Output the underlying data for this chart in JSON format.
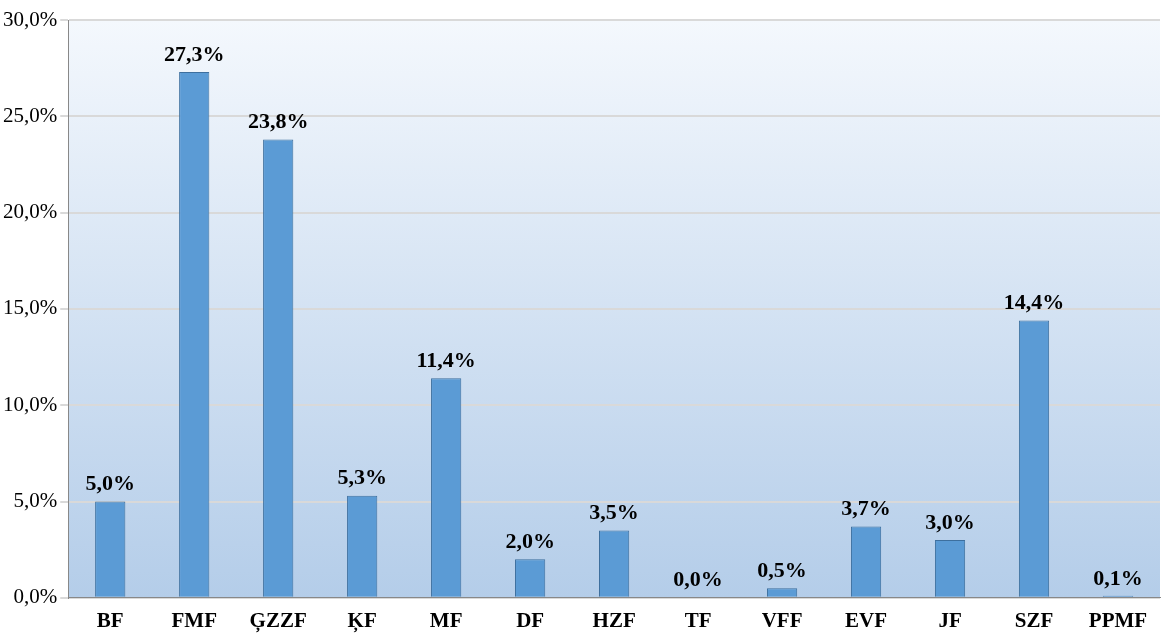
{
  "chart_data": {
    "type": "bar",
    "categories": [
      "BF",
      "FMF",
      "ĢZZF",
      "ĶF",
      "MF",
      "DF",
      "HZF",
      "TF",
      "VFF",
      "EVF",
      "JF",
      "SZF",
      "PPMF"
    ],
    "values": [
      5.0,
      27.3,
      23.8,
      5.3,
      11.4,
      2.0,
      3.5,
      0.0,
      0.5,
      3.7,
      3.0,
      14.4,
      0.1
    ],
    "value_labels": [
      "5,0%",
      "27,3%",
      "23,8%",
      "5,3%",
      "11,4%",
      "2,0%",
      "3,5%",
      "0,0%",
      "0,5%",
      "3,7%",
      "3,0%",
      "14,4%",
      "0,1%"
    ],
    "color": "#5b9bd5",
    "ylim": [
      0,
      30
    ],
    "yticks": [
      {
        "value": 0,
        "label": "0,0%"
      },
      {
        "value": 5,
        "label": "5,0%"
      },
      {
        "value": 10,
        "label": "10,0%"
      },
      {
        "value": 15,
        "label": "15,0%"
      },
      {
        "value": 20,
        "label": "20,0%"
      },
      {
        "value": 25,
        "label": "25,0%"
      },
      {
        "value": 30,
        "label": "30,0%"
      }
    ],
    "grid": "y",
    "legend": false
  }
}
